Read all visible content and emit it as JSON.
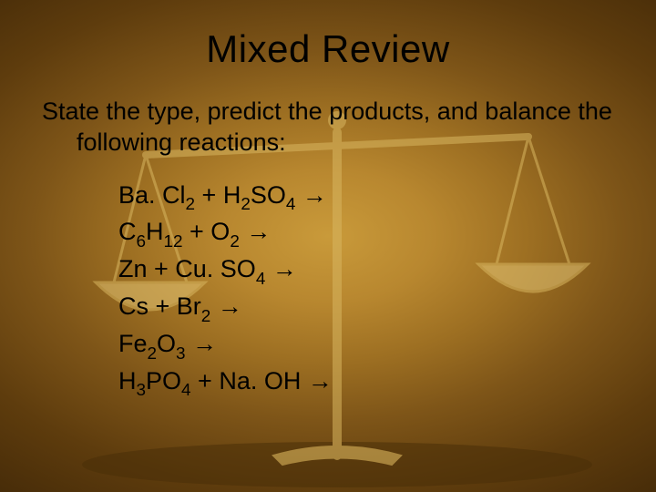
{
  "title": "Mixed Review",
  "instruction": "State the type, predict the products, and balance the following reactions:",
  "reactions": [
    {
      "parts": [
        {
          "t": "Ba. Cl"
        },
        {
          "sub": "2"
        },
        {
          "t": " + H"
        },
        {
          "sub": "2"
        },
        {
          "t": "SO"
        },
        {
          "sub": "4"
        },
        {
          "t": " "
        },
        {
          "arrow": "→"
        }
      ]
    },
    {
      "parts": [
        {
          "t": "C"
        },
        {
          "sub": "6"
        },
        {
          "t": "H"
        },
        {
          "sub": "12"
        },
        {
          "t": " +  O"
        },
        {
          "sub": "2"
        },
        {
          "t": " "
        },
        {
          "arrow": "→"
        }
      ]
    },
    {
      "parts": [
        {
          "t": "Zn + Cu. SO"
        },
        {
          "sub": "4"
        },
        {
          "t": " "
        },
        {
          "arrow": "→"
        }
      ]
    },
    {
      "parts": [
        {
          "t": "Cs + Br"
        },
        {
          "sub": "2"
        },
        {
          "t": " "
        },
        {
          "arrow": "→"
        }
      ]
    },
    {
      "parts": [
        {
          "t": "Fe"
        },
        {
          "sub": "2"
        },
        {
          "t": "O"
        },
        {
          "sub": "3"
        },
        {
          "t": " "
        },
        {
          "arrow": "→"
        }
      ]
    },
    {
      "parts": [
        {
          "t": "H"
        },
        {
          "sub": "3"
        },
        {
          "t": "PO"
        },
        {
          "sub": "4"
        },
        {
          "t": "   +   Na. OH "
        },
        {
          "arrow": "→"
        }
      ]
    }
  ],
  "scale": {
    "stroke": "#d8b660",
    "pan_fill": "#e6c776",
    "shadow": "#4a2f08"
  }
}
